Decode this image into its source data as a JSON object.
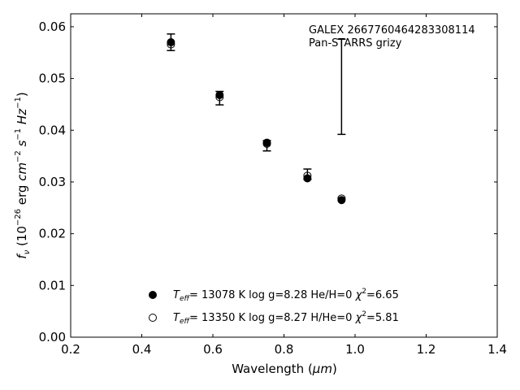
{
  "chart_data": {
    "type": "scatter",
    "xlabel_main": "Wavelength (",
    "xlabel_unit": "μm",
    "xlabel_close": ")",
    "ylabel": {
      "f": "f",
      "sub": "ν",
      "a": " (10",
      "e1": "−26",
      "b": " erg ",
      "cm": "cm",
      "e2": "−2",
      "c": " ",
      "s": "s",
      "e3": "−1",
      "d": " ",
      "hz": "Hz",
      "e4": "−1",
      "e": ")"
    },
    "xlim": [
      0.2,
      1.4
    ],
    "ylim": [
      0.0,
      0.0625
    ],
    "xticks": [
      0.2,
      0.4,
      0.6,
      0.8,
      1.0,
      1.2,
      1.4
    ],
    "xtick_labels": [
      "0.2",
      "0.4",
      "0.6",
      "0.8",
      "1.0",
      "1.2",
      "1.4"
    ],
    "yticks": [
      0.0,
      0.01,
      0.02,
      0.03,
      0.04,
      0.05,
      0.06
    ],
    "ytick_labels": [
      "0.00",
      "0.01",
      "0.02",
      "0.03",
      "0.04",
      "0.05",
      "0.06"
    ],
    "annotation": {
      "line1": "GALEX 2667760464283308114",
      "line2": "Pan-STARRS grizy"
    },
    "observed": {
      "x": [
        0.482,
        0.619,
        0.752,
        0.866,
        0.962
      ],
      "y": [
        0.057,
        0.0462,
        0.037,
        0.0315,
        0.0484
      ],
      "err": [
        0.0016,
        0.0013,
        0.001,
        0.001,
        0.0092
      ]
    },
    "series": [
      {
        "marker": "filled",
        "x": [
          0.482,
          0.619,
          0.752,
          0.866,
          0.962
        ],
        "y": [
          0.057,
          0.0468,
          0.0376,
          0.0307,
          0.0265
        ]
      },
      {
        "marker": "open",
        "x": [
          0.482,
          0.619,
          0.752,
          0.866,
          0.962
        ],
        "y": [
          0.0566,
          0.0464,
          0.0374,
          0.0312,
          0.0268
        ]
      }
    ],
    "legend": {
      "placement": "lower-center",
      "entries": [
        {
          "marker": "filled",
          "T": "T",
          "eff": "eff",
          "text1": "= 13078 K  log g=8.28  He/H=0  ",
          "chi": "χ",
          "sup": "2",
          "text2": "=6.65"
        },
        {
          "marker": "open",
          "T": "T",
          "eff": "eff",
          "text1": "= 13350 K  log g=8.27  H/He=0  ",
          "chi": "χ",
          "sup": "2",
          "text2": "=5.81"
        }
      ]
    }
  }
}
